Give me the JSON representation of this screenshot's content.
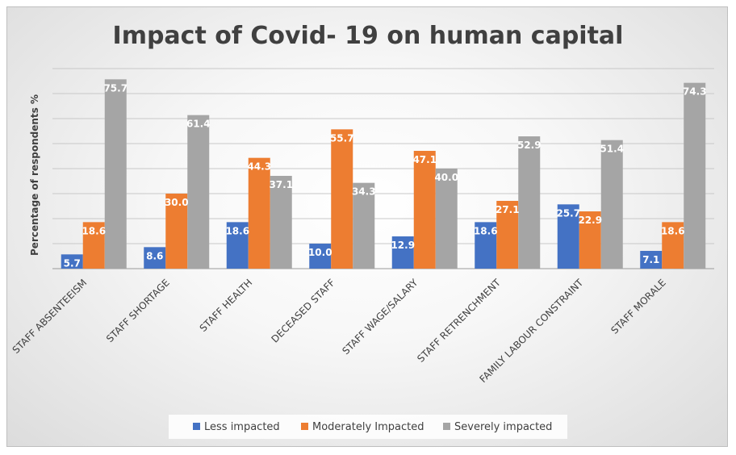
{
  "chart_data": {
    "type": "bar",
    "title": "Impact of Covid- 19 on human capital",
    "xlabel": "",
    "ylabel": "Percentage of respondents %",
    "ylim": [
      0,
      80
    ],
    "grid": true,
    "legend": "bottom",
    "categories": [
      "STAFF ABSENTEEISM",
      "STAFF SHORTAGE",
      "STAFF HEALTH",
      "DECEASED STAFF",
      "STAFF WAGE/SALARY",
      "STAFF RETRENCHMENT",
      "FAMILY LABOUR CONSTRAINT",
      "STAFF MORALE"
    ],
    "series": [
      {
        "name": "Less impacted",
        "color": "#4472C4",
        "values": [
          5.7,
          8.6,
          18.6,
          10.0,
          12.9,
          18.6,
          25.7,
          7.1
        ]
      },
      {
        "name": "Moderately Impacted",
        "color": "#ED7D31",
        "values": [
          18.6,
          30.0,
          44.3,
          55.7,
          47.1,
          27.1,
          22.9,
          18.6
        ]
      },
      {
        "name": "Severely impacted",
        "color": "#A5A5A5",
        "values": [
          75.7,
          61.4,
          37.1,
          34.3,
          40.0,
          52.9,
          51.4,
          74.3
        ]
      }
    ]
  }
}
